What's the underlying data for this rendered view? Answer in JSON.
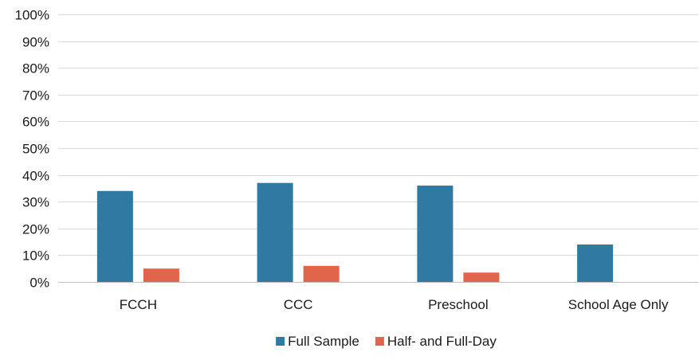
{
  "chart_data": {
    "type": "bar",
    "categories": [
      "FCCH",
      "CCC",
      "Preschool",
      "School Age Only"
    ],
    "series": [
      {
        "name": "Full Sample",
        "values": [
          34,
          37,
          36,
          14
        ],
        "color": "#2e7aa3"
      },
      {
        "name": "Half- and Full-Day",
        "values": [
          5,
          6,
          3.5,
          null
        ],
        "color": "#e0654a"
      }
    ],
    "y_ticks": [
      "0%",
      "10%",
      "20%",
      "30%",
      "40%",
      "50%",
      "60%",
      "70%",
      "80%",
      "90%",
      "100%"
    ],
    "ylim": [
      0,
      100
    ],
    "grid": true,
    "legend_position": "bottom-center",
    "gridline_color": "#d9d9d9",
    "axis_color": "#bfbfbf",
    "text_color": "#1a1a1a"
  }
}
